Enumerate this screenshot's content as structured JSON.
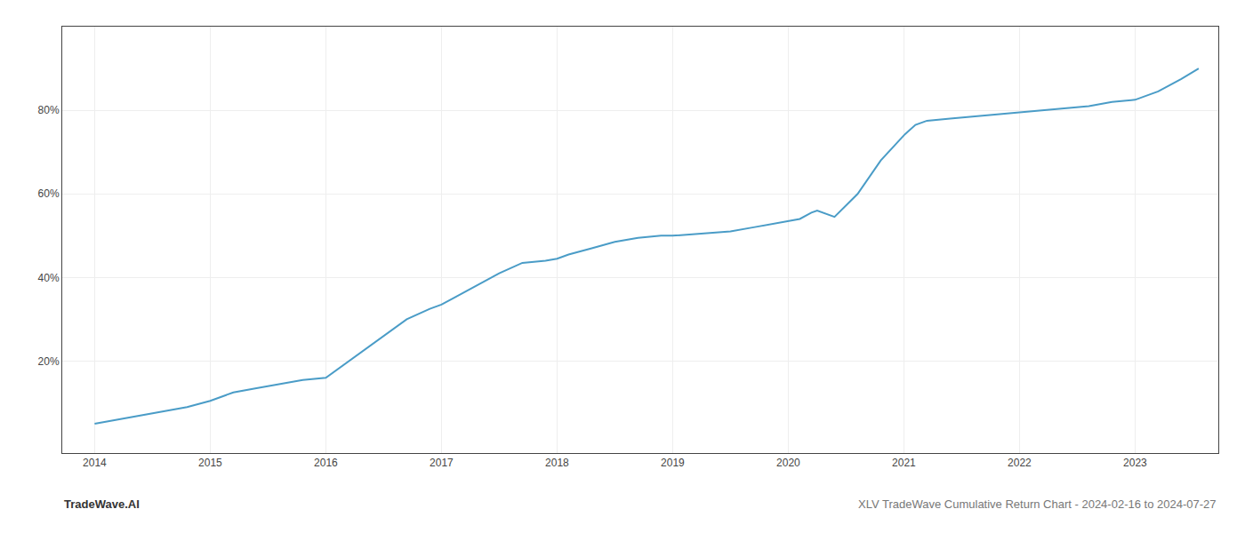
{
  "chart_data": {
    "type": "line",
    "x": [
      2014.0,
      2014.1,
      2014.2,
      2014.4,
      2014.6,
      2014.8,
      2015.0,
      2015.1,
      2015.2,
      2015.4,
      2015.6,
      2015.8,
      2016.0,
      2016.1,
      2016.3,
      2016.5,
      2016.7,
      2016.9,
      2017.0,
      2017.1,
      2017.3,
      2017.5,
      2017.7,
      2017.9,
      2018.0,
      2018.1,
      2018.3,
      2018.5,
      2018.7,
      2018.9,
      2019.0,
      2019.1,
      2019.3,
      2019.5,
      2019.7,
      2019.9,
      2020.0,
      2020.1,
      2020.2,
      2020.25,
      2020.4,
      2020.6,
      2020.8,
      2021.0,
      2021.1,
      2021.2,
      2021.4,
      2021.6,
      2021.8,
      2022.0,
      2022.2,
      2022.4,
      2022.6,
      2022.8,
      2023.0,
      2023.2,
      2023.4,
      2023.55
    ],
    "values": [
      5.0,
      5.5,
      6.0,
      7.0,
      8.0,
      9.0,
      10.5,
      11.5,
      12.5,
      13.5,
      14.5,
      15.5,
      16.0,
      18.0,
      22.0,
      26.0,
      30.0,
      32.5,
      33.5,
      35.0,
      38.0,
      41.0,
      43.5,
      44.0,
      44.5,
      45.5,
      47.0,
      48.5,
      49.5,
      50.0,
      50.0,
      50.2,
      50.5,
      51.0,
      52.0,
      53.0,
      53.5,
      54.0,
      55.5,
      56.0,
      54.5,
      60.0,
      68.0,
      74.0,
      76.5,
      77.5,
      78.0,
      78.5,
      79.0,
      79.5,
      80.0,
      80.5,
      81.0,
      82.0,
      82.5,
      84.5,
      87.5,
      90.0
    ],
    "color": "#4a9cc7",
    "xlim": [
      2013.72,
      2023.72
    ],
    "xticks": [
      2014,
      2015,
      2016,
      2017,
      2018,
      2019,
      2020,
      2021,
      2022,
      2023
    ],
    "ylim": [
      -2,
      100
    ],
    "yticks": [
      {
        "value": 20,
        "label": "20%"
      },
      {
        "value": 40,
        "label": "40%"
      },
      {
        "value": 60,
        "label": "60%"
      },
      {
        "value": 80,
        "label": "80%"
      }
    ],
    "grid": true,
    "annotations": [
      "TradeWave.AI",
      "XLV TradeWave Cumulative Return Chart - 2024-02-16 to 2024-07-27"
    ]
  }
}
